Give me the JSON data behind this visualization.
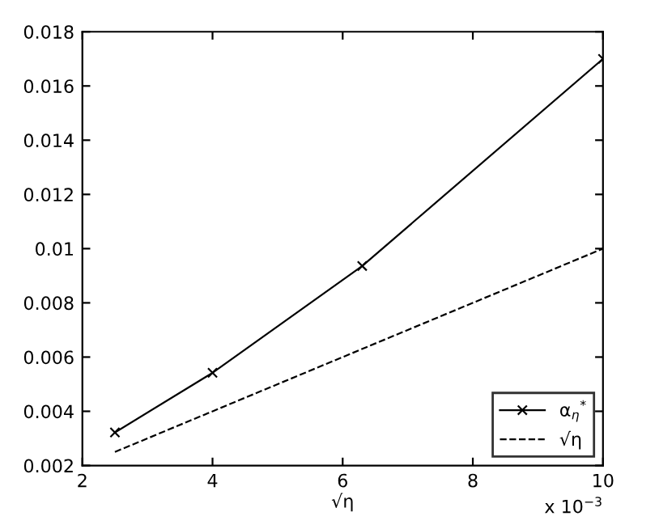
{
  "chart_data": {
    "type": "line",
    "xlabel": "√η",
    "series": [
      {
        "name": "α$_{η}$$^{*}$",
        "color": "#000000",
        "x": [
          2.5,
          4,
          6.3,
          10
        ],
        "values": [
          0.00322,
          0.00542,
          0.00936,
          0.017
        ],
        "marker": "cross",
        "line_style": "solid"
      },
      {
        "name": "√η",
        "color": "#000000",
        "x": [
          2.5,
          10
        ],
        "values": [
          0.0025,
          0.01
        ],
        "marker": "none",
        "line_style": "dashed"
      }
    ],
    "xlim": [
      2,
      10
    ],
    "xticks": [
      2,
      4,
      6,
      8,
      10
    ],
    "ylim": [
      0.002,
      0.018
    ],
    "yticks": [
      0.002,
      0.004,
      0.006,
      0.008,
      0.01,
      0.012,
      0.014,
      0.016,
      0.018
    ],
    "annotations": [
      "x 10$^{−3}$"
    ],
    "legend": "bottom right",
    "grid": false
  }
}
